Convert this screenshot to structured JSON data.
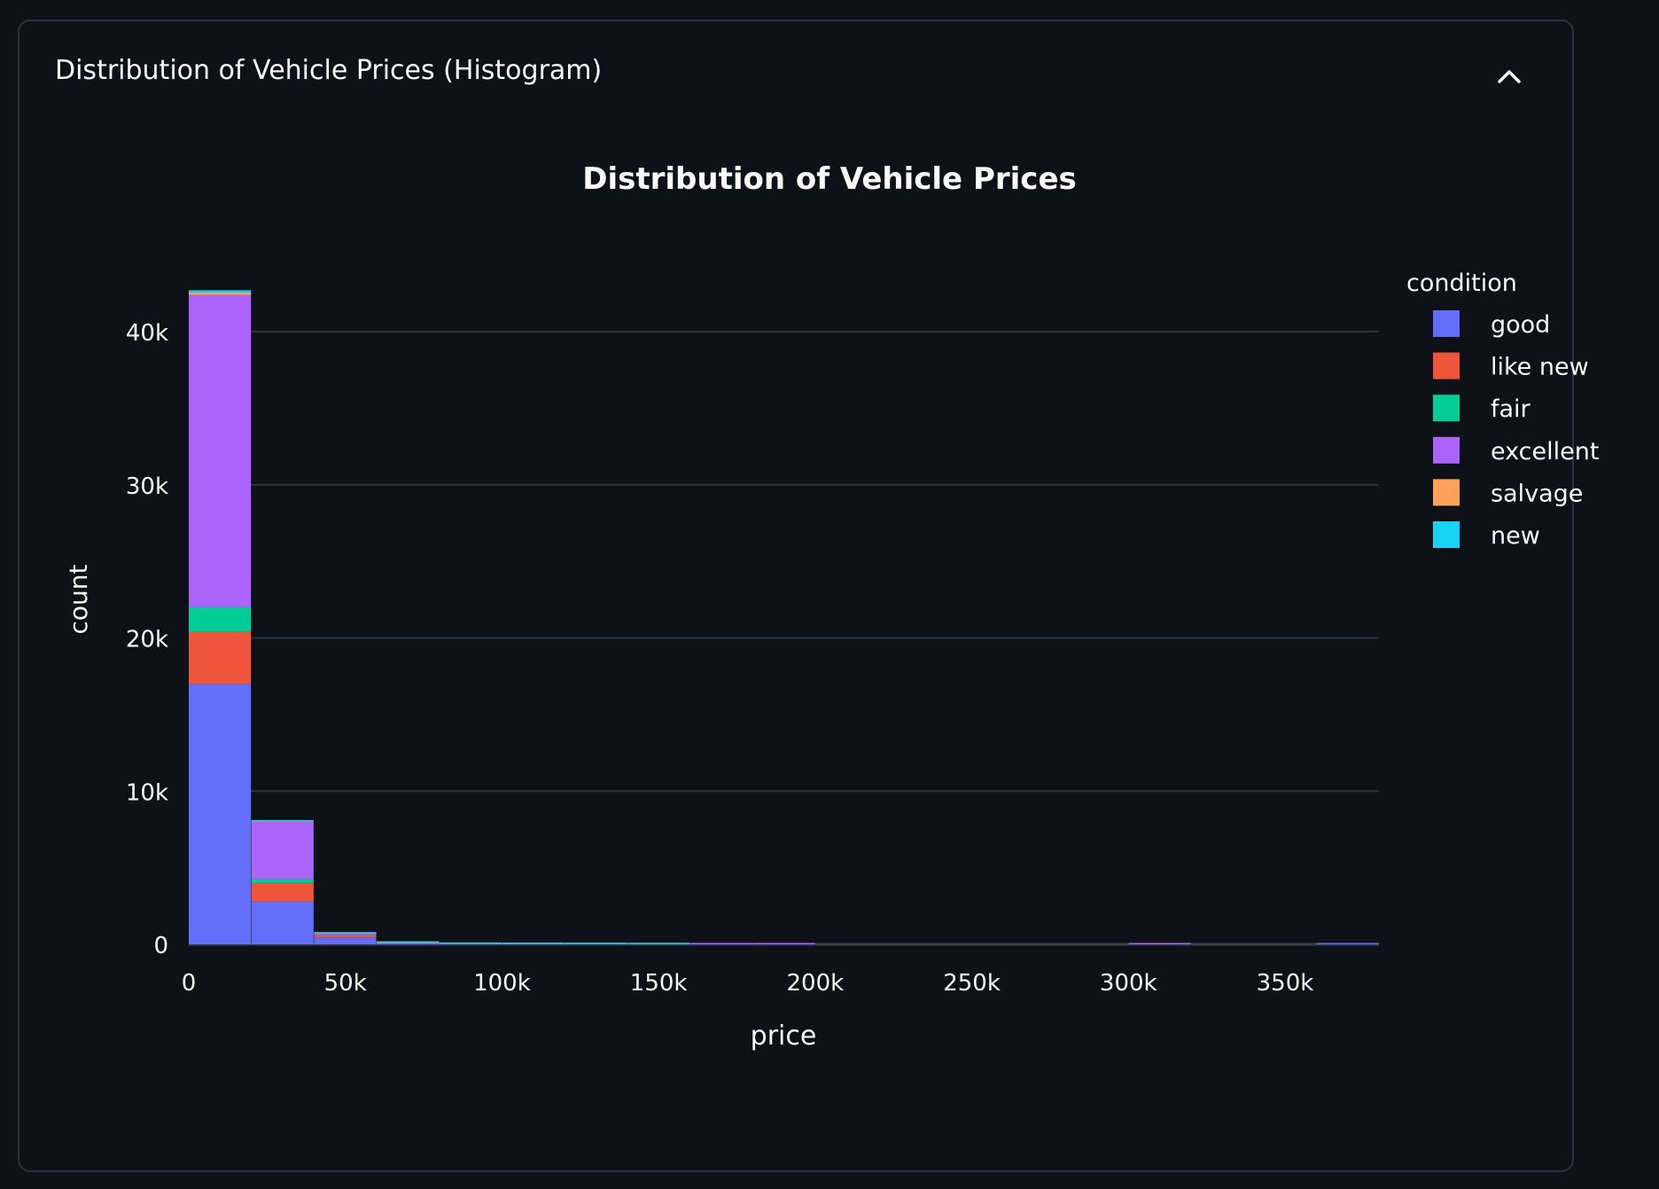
{
  "expander": {
    "title": "Distribution of Vehicle Prices (Histogram)",
    "state": "expanded",
    "toggle_icon": "chevron-up-icon"
  },
  "chart_data": {
    "type": "bar",
    "mode": "stacked",
    "title": "Distribution of Vehicle Prices",
    "xlabel": "price",
    "ylabel": "count",
    "xlim": [
      0,
      380000
    ],
    "ylim": [
      0,
      43000
    ],
    "bin_width": 20000,
    "x_ticks": [
      0,
      50000,
      100000,
      150000,
      200000,
      250000,
      300000,
      350000
    ],
    "x_tick_labels": [
      "0",
      "50k",
      "100k",
      "150k",
      "200k",
      "250k",
      "300k",
      "350k"
    ],
    "y_ticks": [
      0,
      10000,
      20000,
      30000,
      40000
    ],
    "y_tick_labels": [
      "0",
      "10k",
      "20k",
      "30k",
      "40k"
    ],
    "grid": true,
    "legend_title": "condition",
    "legend_position": "right",
    "bin_starts": [
      0,
      20000,
      40000,
      60000,
      80000,
      100000,
      120000,
      140000,
      160000,
      180000,
      200000,
      220000,
      240000,
      260000,
      280000,
      300000,
      320000,
      340000,
      360000
    ],
    "series": [
      {
        "name": "good",
        "color": "#636efa",
        "values": [
          17000,
          2800,
          450,
          60,
          20,
          10,
          5,
          5,
          3,
          2,
          0,
          0,
          0,
          0,
          0,
          0,
          0,
          0,
          3
        ]
      },
      {
        "name": "like new",
        "color": "#ef553b",
        "values": [
          3400,
          1200,
          150,
          20,
          5,
          2,
          0,
          0,
          0,
          0,
          0,
          0,
          0,
          0,
          0,
          0,
          0,
          0,
          0
        ]
      },
      {
        "name": "fair",
        "color": "#00cc96",
        "values": [
          1600,
          250,
          20,
          5,
          1,
          0,
          3,
          0,
          0,
          0,
          0,
          0,
          0,
          0,
          0,
          0,
          0,
          0,
          0
        ]
      },
      {
        "name": "excellent",
        "color": "#ab63fa",
        "values": [
          20400,
          3750,
          80,
          15,
          5,
          3,
          2,
          2,
          1,
          1,
          0,
          0,
          0,
          0,
          0,
          2,
          0,
          0,
          0
        ]
      },
      {
        "name": "salvage",
        "color": "#ffa15a",
        "values": [
          150,
          20,
          5,
          1,
          0,
          0,
          0,
          0,
          0,
          0,
          0,
          0,
          0,
          0,
          0,
          0,
          0,
          0,
          0
        ]
      },
      {
        "name": "new",
        "color": "#19d3f3",
        "values": [
          150,
          60,
          30,
          15,
          10,
          3,
          1,
          1,
          0,
          0,
          0,
          0,
          0,
          0,
          0,
          0,
          0,
          0,
          0
        ]
      }
    ]
  }
}
